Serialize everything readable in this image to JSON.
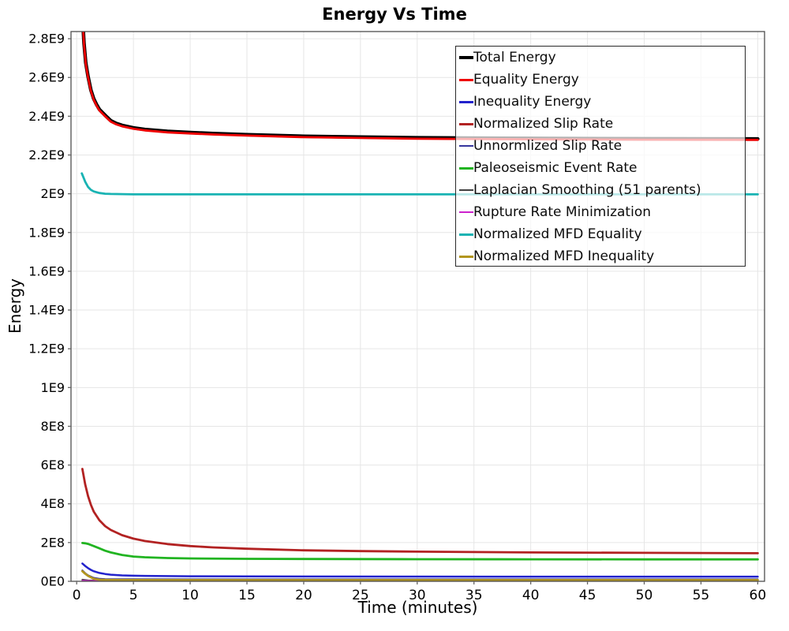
{
  "chart": {
    "title": "Energy Vs Time",
    "xlabel": "Time (minutes)",
    "ylabel": "Energy"
  },
  "chart_data": {
    "type": "line",
    "title": "Energy Vs Time",
    "xlabel": "Time (minutes)",
    "ylabel": "Energy",
    "xlim": [
      -0.5,
      60.6
    ],
    "ylim": [
      0,
      2837000000.0
    ],
    "grid": true,
    "legend_position": "top-right-inside",
    "x_ticks": [
      0,
      5,
      10,
      15,
      20,
      25,
      30,
      35,
      40,
      45,
      50,
      55,
      60
    ],
    "y_ticks": [
      {
        "label": "0E0",
        "value": 0
      },
      {
        "label": "2E8",
        "value": 200000000.0
      },
      {
        "label": "4E8",
        "value": 400000000.0
      },
      {
        "label": "6E8",
        "value": 600000000.0
      },
      {
        "label": "8E8",
        "value": 800000000.0
      },
      {
        "label": "1E9",
        "value": 1000000000.0
      },
      {
        "label": "1.2E9",
        "value": 1200000000.0
      },
      {
        "label": "1.4E9",
        "value": 1400000000.0
      },
      {
        "label": "1.6E9",
        "value": 1600000000.0
      },
      {
        "label": "1.8E9",
        "value": 1800000000.0
      },
      {
        "label": "2E9",
        "value": 2000000000.0
      },
      {
        "label": "2.2E9",
        "value": 2200000000.0
      },
      {
        "label": "2.4E9",
        "value": 2400000000.0
      },
      {
        "label": "2.6E9",
        "value": 2600000000.0
      },
      {
        "label": "2.8E9",
        "value": 2800000000.0
      }
    ],
    "colors": {
      "grid": "#e6e6e6",
      "plot_border": "#4d4d4d",
      "tick": "#666666",
      "text": "#000000"
    },
    "series": [
      {
        "name": "Total Energy",
        "color": "#000000",
        "width": 4.5,
        "x": [
          0.45,
          0.55,
          0.65,
          0.8,
          1,
          1.25,
          1.5,
          1.75,
          2,
          2.5,
          3,
          3.5,
          4,
          5,
          6,
          8,
          10,
          12,
          15,
          20,
          25,
          30,
          40,
          50,
          60
        ],
        "y": [
          3055000000.0,
          2875000000.0,
          2775000000.0,
          2675000000.0,
          2605000000.0,
          2535000000.0,
          2490000000.0,
          2460000000.0,
          2435000000.0,
          2405000000.0,
          2377000000.0,
          2363000000.0,
          2353000000.0,
          2340000000.0,
          2332000000.0,
          2322000000.0,
          2316000000.0,
          2311000000.0,
          2305000000.0,
          2297000000.0,
          2293000000.0,
          2289000000.0,
          2286000000.0,
          2284000000.0,
          2283000000.0
        ]
      },
      {
        "name": "Equality Energy",
        "color": "#ee0000",
        "width": 2.8,
        "x": [
          0.45,
          0.55,
          0.65,
          0.8,
          1,
          1.25,
          1.5,
          1.75,
          2,
          2.5,
          3,
          3.5,
          4,
          5,
          6,
          8,
          10,
          12,
          15,
          20,
          25,
          30,
          40,
          50,
          60
        ],
        "y": [
          3050000000.0,
          2870000000.0,
          2770000000.0,
          2670000000.0,
          2600000000.0,
          2530000000.0,
          2485000000.0,
          2455000000.0,
          2430000000.0,
          2400000000.0,
          2372000000.0,
          2358000000.0,
          2348000000.0,
          2335000000.0,
          2327000000.0,
          2317000000.0,
          2311000000.0,
          2306000000.0,
          2300000000.0,
          2292000000.0,
          2288000000.0,
          2284000000.0,
          2281000000.0,
          2279000000.0,
          2278000000.0
        ]
      },
      {
        "name": "Inequality Energy",
        "color": "#2222cc",
        "width": 2.5,
        "x": [
          0.5,
          0.75,
          1,
          1.25,
          1.5,
          2,
          2.5,
          3,
          4,
          5,
          6,
          8,
          10,
          15,
          20,
          30,
          40,
          50,
          60
        ],
        "y": [
          92000000.0,
          79000000.0,
          68000000.0,
          59000000.0,
          52000000.0,
          43000000.0,
          38000000.0,
          34000000.0,
          30500000.0,
          29000000.0,
          28000000.0,
          27000000.0,
          26000000.0,
          25500000.0,
          25000000.0,
          24500000.0,
          24000000.0,
          24000000.0,
          24000000.0
        ]
      },
      {
        "name": "Normalized Slip Rate",
        "color": "#b22222",
        "width": 2.8,
        "x": [
          0.5,
          0.75,
          1,
          1.25,
          1.5,
          2,
          2.5,
          3,
          4,
          5,
          6,
          8,
          10,
          12,
          15,
          20,
          25,
          30,
          40,
          50,
          60
        ],
        "y": [
          580000000.0,
          500000000.0,
          440000000.0,
          395000000.0,
          360000000.0,
          315000000.0,
          285000000.0,
          265000000.0,
          238000000.0,
          220000000.0,
          208000000.0,
          192000000.0,
          182000000.0,
          175000000.0,
          168000000.0,
          160000000.0,
          156000000.0,
          153000000.0,
          149000000.0,
          147000000.0,
          145000000.0
        ]
      },
      {
        "name": "Unnormlized Slip Rate",
        "color": "#36369e",
        "width": 2.2,
        "x": [
          0.5,
          0.75,
          1,
          1.5,
          2,
          2.5,
          3,
          5,
          10,
          20,
          60
        ],
        "y": [
          56000000.0,
          42000000.0,
          31000000.0,
          18000000.0,
          13000000.0,
          11500000.0,
          11000000.0,
          10500000.0,
          10000000.0,
          10000000.0,
          10000000.0
        ]
      },
      {
        "name": "Paleoseismic Event Rate",
        "color": "#21b421",
        "width": 2.8,
        "x": [
          0.5,
          0.75,
          1,
          1.5,
          2,
          2.5,
          3,
          4,
          5,
          6,
          8,
          10,
          15,
          20,
          30,
          40,
          50,
          60
        ],
        "y": [
          198000000.0,
          196000000.0,
          193000000.0,
          182000000.0,
          170000000.0,
          158000000.0,
          149000000.0,
          136000000.0,
          128000000.0,
          124000000.0,
          120000000.0,
          118000000.0,
          116000000.0,
          115000000.0,
          114000000.0,
          113500000.0,
          113000000.0,
          113000000.0
        ]
      },
      {
        "name": "Laplacian Smoothing (51 parents)",
        "color": "#404040",
        "width": 2.2,
        "x": [
          0.5,
          1,
          2,
          5,
          10,
          60
        ],
        "y": [
          8000000.0,
          5000000.0,
          4000000.0,
          3500000.0,
          3500000.0,
          3500000.0
        ]
      },
      {
        "name": "Rupture Rate Minimization",
        "color": "#cc22cc",
        "width": 2.2,
        "x": [
          0.5,
          1,
          2,
          5,
          60
        ],
        "y": [
          3000000.0,
          2000000.0,
          1500000.0,
          1500000.0,
          1500000.0
        ]
      },
      {
        "name": "Normalized MFD Equality",
        "color": "#19b3b3",
        "width": 2.8,
        "x": [
          0.45,
          0.75,
          1,
          1.25,
          1.5,
          2,
          2.5,
          3,
          4,
          5,
          10,
          20,
          40,
          60
        ],
        "y": [
          2105000000.0,
          2062000000.0,
          2035000000.0,
          2020000000.0,
          2012000000.0,
          2004000000.0,
          2000000000.0,
          1999000000.0,
          1998000000.0,
          1997000000.0,
          1997000000.0,
          1997000000.0,
          1997000000.0,
          1997000000.0
        ]
      },
      {
        "name": "Normalized MFD Inequality",
        "color": "#b2961e",
        "width": 2.8,
        "x": [
          0.5,
          0.75,
          1,
          1.5,
          2,
          2.5,
          3,
          5,
          10,
          60
        ],
        "y": [
          52000000.0,
          39000000.0,
          28000000.0,
          13000000.0,
          8000000.0,
          7200000.0,
          7000000.0,
          6800000.0,
          6500000.0,
          6500000.0
        ]
      }
    ]
  }
}
